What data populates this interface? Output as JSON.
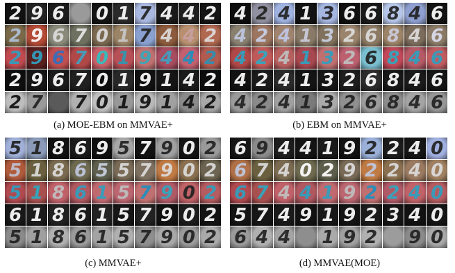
{
  "figure": {
    "panels": [
      {
        "id": "a",
        "caption": "(a) MOE-EBM on MMVAE+",
        "rows": [
          [
            "2",
            "9",
            "6",
            "",
            "0",
            "1",
            "7",
            "4",
            "4",
            "2"
          ],
          [
            "2",
            "9",
            "6",
            "7",
            "0",
            "1",
            "7",
            "4",
            "4",
            "2"
          ],
          [
            "2",
            "9",
            "6",
            "7",
            "0",
            "1",
            "9",
            "4",
            "4",
            "2"
          ],
          [
            "2",
            "9",
            "6",
            "7",
            "0",
            "1",
            "9",
            "1",
            "4",
            "2"
          ],
          [
            "2",
            "7",
            "",
            "7",
            "0",
            "1",
            "9",
            "1",
            "4",
            "2"
          ]
        ]
      },
      {
        "id": "b",
        "caption": "(b) EBM on MMVAE+",
        "rows": [
          [
            "4",
            "2",
            "4",
            "1",
            "3",
            "6",
            "6",
            "8",
            "4",
            "6"
          ],
          [
            "4",
            "2",
            "4",
            "1",
            "3",
            "2",
            "6",
            "8",
            "4",
            "6"
          ],
          [
            "4",
            "2",
            "4",
            "1",
            "3",
            "2",
            "6",
            "8",
            "4",
            "6"
          ],
          [
            "4",
            "2",
            "4",
            "1",
            "3",
            "2",
            "6",
            "8",
            "4",
            "6"
          ],
          [
            "4",
            "2",
            "4",
            "1",
            "3",
            "2",
            "6",
            "8",
            "4",
            "6"
          ]
        ]
      },
      {
        "id": "c",
        "caption": "(c) MMVAE+",
        "rows": [
          [
            "5",
            "1",
            "8",
            "6",
            "9",
            "5",
            "7",
            "9",
            "0",
            "2"
          ],
          [
            "5",
            "1",
            "8",
            "6",
            "5",
            "5",
            "7",
            "9",
            "0",
            "2"
          ],
          [
            "5",
            "1",
            "8",
            "6",
            "1",
            "5",
            "7",
            "9",
            "0",
            "2"
          ],
          [
            "6",
            "1",
            "8",
            "6",
            "1",
            "5",
            "7",
            "9",
            "0",
            "2"
          ],
          [
            "5",
            "1",
            "8",
            "6",
            "1",
            "5",
            "7",
            "9",
            "0",
            "2"
          ]
        ]
      },
      {
        "id": "d",
        "caption": "(d) MMVAE(MOE)",
        "rows": [
          [
            "6",
            "9",
            "4",
            "4",
            "1",
            "9",
            "2",
            "2",
            "4",
            "0"
          ],
          [
            "6",
            "7",
            "4",
            "0",
            "2",
            "9",
            "2",
            "2",
            "4",
            "0"
          ],
          [
            "6",
            "7",
            "4",
            "4",
            "1",
            "9",
            "2",
            "2",
            "4",
            "0"
          ],
          [
            "5",
            "7",
            "4",
            "9",
            "1",
            "9",
            "2",
            "3",
            "4",
            "0"
          ],
          [
            "6",
            "4",
            "4",
            "",
            "1",
            "9",
            "2",
            "",
            "9",
            "0"
          ]
        ]
      }
    ]
  }
}
